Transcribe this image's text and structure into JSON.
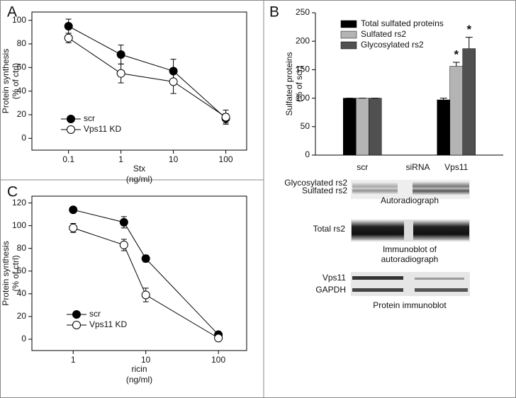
{
  "chart_data": [
    {
      "type": "line",
      "xlabel": [
        "Stx",
        "(ng/ml)"
      ],
      "ylabel": [
        "Protein synthesis",
        "(% of ctrl)"
      ],
      "x": [
        0.1,
        1,
        10,
        100
      ],
      "xscale": "log",
      "xlim": [
        0.02,
        250
      ],
      "xticks": [
        0.1,
        1,
        10,
        100
      ],
      "ylim": [
        -10,
        107
      ],
      "yticks": [
        0,
        20,
        40,
        60,
        80,
        100
      ],
      "legend": "lower left",
      "series": [
        {
          "name": "scr",
          "color": "#000000",
          "values": [
            95,
            71,
            57,
            17
          ],
          "errors": [
            6,
            8,
            10,
            4
          ]
        },
        {
          "name": "Vps11 KD",
          "color": "#ffffff",
          "values": [
            85,
            55,
            48,
            18
          ],
          "errors": [
            4,
            8,
            10,
            6
          ]
        }
      ]
    },
    {
      "type": "bar",
      "ylabel": [
        "Sulfated proteins",
        "(% of scr)"
      ],
      "categories": [
        "scr",
        "Vps11"
      ],
      "group_label": "siRNA",
      "ylim": [
        0,
        250
      ],
      "yticks": [
        0,
        50,
        100,
        150,
        200,
        250
      ],
      "legend": "upper left",
      "series": [
        {
          "name": "Total sulfated proteins",
          "color": "#000000",
          "values": [
            100,
            97
          ],
          "errors": [
            0,
            3
          ]
        },
        {
          "name": "Sulfated rs2",
          "color": "#b4b4b4",
          "values": [
            100,
            156
          ],
          "errors": [
            0,
            7
          ]
        },
        {
          "name": "Glycosylated rs2",
          "color": "#505050",
          "values": [
            100,
            187
          ],
          "errors": [
            0,
            20
          ]
        }
      ],
      "annotations": [
        "*",
        "*"
      ]
    },
    {
      "type": "line",
      "xlabel": [
        "ricin",
        "(ng/ml)"
      ],
      "ylabel": [
        "Protein synthesis",
        "(% of ctrl)"
      ],
      "x": [
        1,
        5,
        10,
        100
      ],
      "xscale": "log",
      "xlim": [
        0.27,
        245
      ],
      "xticks": [
        1,
        10,
        100
      ],
      "ylim": [
        -10,
        126
      ],
      "yticks": [
        0,
        20,
        40,
        60,
        80,
        100,
        120
      ],
      "legend": "lower left",
      "series": [
        {
          "name": "scr",
          "color": "#000000",
          "values": [
            114,
            103,
            71,
            4
          ],
          "errors": [
            2,
            5,
            3,
            1
          ]
        },
        {
          "name": "Vps11 KD",
          "color": "#ffffff",
          "values": [
            98,
            83,
            39,
            1
          ],
          "errors": [
            4,
            5,
            6,
            1
          ]
        }
      ]
    }
  ],
  "panels": [
    "A",
    "B",
    "C"
  ],
  "blots": {
    "autoradiograph": {
      "labels": [
        "Glycosylated rs2",
        "Sulfated rs2"
      ],
      "caption": [
        "Autoradiograph"
      ]
    },
    "immunoblot": {
      "labels": [
        "Total rs2"
      ],
      "caption": [
        "Immunoblot of",
        "autoradiograph"
      ]
    },
    "protein": {
      "labels": [
        "Vps11",
        "GAPDH"
      ],
      "caption": [
        "Protein immunoblot"
      ]
    }
  }
}
